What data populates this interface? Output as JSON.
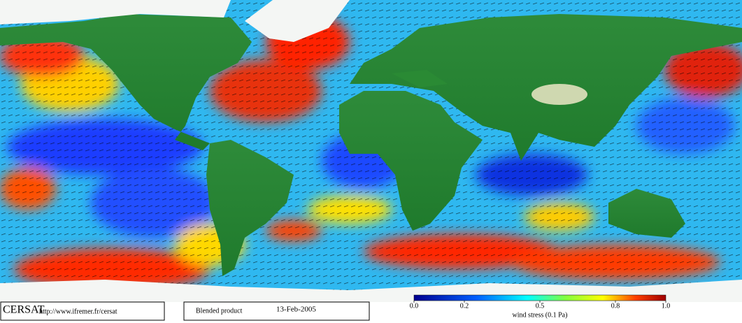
{
  "logo": "CERSAT",
  "url": "http://www.ifremer.fr/cersat",
  "product": "Blended product",
  "date": "13-Feb-2005",
  "colorbar": {
    "label": "wind stress (0.1 Pa)",
    "lim": [
      0,
      1
    ],
    "ticks": [
      {
        "value": 0,
        "label": "0.0"
      },
      {
        "value": 0.2,
        "label": "0.2"
      },
      {
        "value": 0.5,
        "label": "0.5"
      },
      {
        "value": 0.8,
        "label": "0.8"
      },
      {
        "value": 1,
        "label": "1.0"
      }
    ]
  }
}
